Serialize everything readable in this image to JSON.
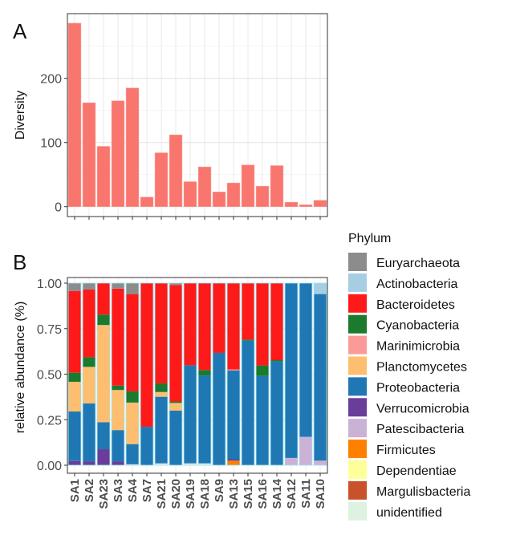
{
  "chart_data": [
    {
      "panel": "A",
      "type": "bar",
      "title": "",
      "xlabel": "",
      "ylabel": "Diversity",
      "ylim": [
        0,
        295
      ],
      "yticks": [
        0,
        100,
        200
      ],
      "grid": true,
      "categories": [
        "SA1",
        "SA2",
        "SA23",
        "SA3",
        "SA4",
        "SA7",
        "SA21",
        "SA20",
        "SA19",
        "SA18",
        "SA9",
        "SA13",
        "SA15",
        "SA16",
        "SA14",
        "SA12",
        "SA11",
        "SA10"
      ],
      "values": [
        286,
        162,
        94,
        165,
        185,
        15,
        84,
        112,
        39,
        62,
        23,
        37,
        65,
        32,
        64,
        7,
        3,
        10
      ],
      "bar_color": "#F8766D"
    },
    {
      "panel": "B",
      "type": "bar",
      "stacked": true,
      "title": "",
      "xlabel": "",
      "ylabel": "relative abundance (%)",
      "ylim": [
        0,
        1
      ],
      "yticks": [
        "0.00",
        "0.25",
        "0.50",
        "0.75",
        "1.00"
      ],
      "grid": true,
      "legend_title": "Phylum",
      "legend_position": "right",
      "categories": [
        "SA1",
        "SA2",
        "SA23",
        "SA3",
        "SA4",
        "SA7",
        "SA21",
        "SA20",
        "SA19",
        "SA18",
        "SA9",
        "SA13",
        "SA15",
        "SA16",
        "SA14",
        "SA12",
        "SA11",
        "SA10"
      ],
      "series": [
        {
          "name": "unidentified",
          "color": "#DDF2E0",
          "values": [
            0,
            0,
            0,
            0,
            0.005,
            0,
            0.01,
            0,
            0.01,
            0.01,
            0,
            0,
            0,
            0,
            0,
            0,
            0,
            0
          ]
        },
        {
          "name": "Margulisbacteria",
          "color": "#C8522A",
          "values": [
            0,
            0,
            0,
            0,
            0,
            0,
            0,
            0,
            0,
            0,
            0,
            0,
            0,
            0,
            0,
            0,
            0,
            0
          ]
        },
        {
          "name": "Dependentiae",
          "color": "#FFFF99",
          "values": [
            0,
            0,
            0,
            0,
            0,
            0,
            0,
            0,
            0,
            0,
            0,
            0,
            0,
            0,
            0,
            0,
            0,
            0
          ]
        },
        {
          "name": "Firmicutes",
          "color": "#FF7F00",
          "values": [
            0,
            0,
            0,
            0,
            0,
            0,
            0,
            0,
            0,
            0,
            0,
            0.025,
            0,
            0,
            0,
            0,
            0,
            0
          ]
        },
        {
          "name": "Patescibacteria",
          "color": "#CAB2D6",
          "values": [
            0,
            0,
            0,
            0,
            0,
            0,
            0,
            0,
            0,
            0,
            0,
            0,
            0,
            0,
            0,
            0.04,
            0.156,
            0.025
          ]
        },
        {
          "name": "Verrucomicrobia",
          "color": "#6A3D9A",
          "values": [
            0.023,
            0.02,
            0.088,
            0.02,
            0,
            0,
            0,
            0,
            0,
            0,
            0,
            0.008,
            0,
            0,
            0,
            0,
            0,
            0
          ]
        },
        {
          "name": "Proteobacteria",
          "color": "#1F78B4",
          "values": [
            0.272,
            0.319,
            0.148,
            0.173,
            0.111,
            0.211,
            0.366,
            0.3,
            0.539,
            0.483,
            0.617,
            0.488,
            0.684,
            0.49,
            0.57,
            0.96,
            0.844,
            0.915
          ]
        },
        {
          "name": "Planctomycetes",
          "color": "#FDBF6F",
          "values": [
            0.163,
            0.201,
            0.534,
            0.22,
            0.228,
            0,
            0.026,
            0.042,
            0,
            0,
            0,
            0,
            0,
            0,
            0,
            0,
            0,
            0
          ]
        },
        {
          "name": "Marinimicrobia",
          "color": "#FB9A99",
          "values": [
            0,
            0,
            0,
            0,
            0,
            0,
            0,
            0,
            0,
            0,
            0,
            0.005,
            0,
            0,
            0,
            0,
            0,
            0
          ]
        },
        {
          "name": "Cyanobacteria",
          "color": "#1A7A2E",
          "values": [
            0.05,
            0.053,
            0.057,
            0.024,
            0.061,
            0,
            0.047,
            0.008,
            0,
            0.03,
            0,
            0,
            0.006,
            0.058,
            0.007,
            0,
            0,
            0
          ]
        },
        {
          "name": "Bacteroidetes",
          "color": "#FF1A1A",
          "values": [
            0.449,
            0.372,
            0.173,
            0.533,
            0.535,
            0.789,
            0.551,
            0.64,
            0.451,
            0.477,
            0.383,
            0.474,
            0.31,
            0.452,
            0.423,
            0,
            0,
            0
          ]
        },
        {
          "name": "Actinobacteria",
          "color": "#A6CEE3",
          "values": [
            0,
            0,
            0,
            0,
            0,
            0,
            0,
            0,
            0,
            0,
            0,
            0,
            0,
            0,
            0,
            0,
            0,
            0.06
          ]
        },
        {
          "name": "Euryarchaeota",
          "color": "#8C8C8C",
          "values": [
            0.043,
            0.035,
            0,
            0.03,
            0.06,
            0,
            0,
            0.01,
            0,
            0,
            0,
            0,
            0,
            0,
            0,
            0,
            0,
            0
          ]
        }
      ],
      "legend_order": [
        "Euryarchaeota",
        "Actinobacteria",
        "Bacteroidetes",
        "Cyanobacteria",
        "Marinimicrobia",
        "Planctomycetes",
        "Proteobacteria",
        "Verrucomicrobia",
        "Patescibacteria",
        "Firmicutes",
        "Dependentiae",
        "Margulisbacteria",
        "unidentified"
      ]
    }
  ],
  "labels": {
    "panel_a": "A",
    "panel_b": "B"
  }
}
